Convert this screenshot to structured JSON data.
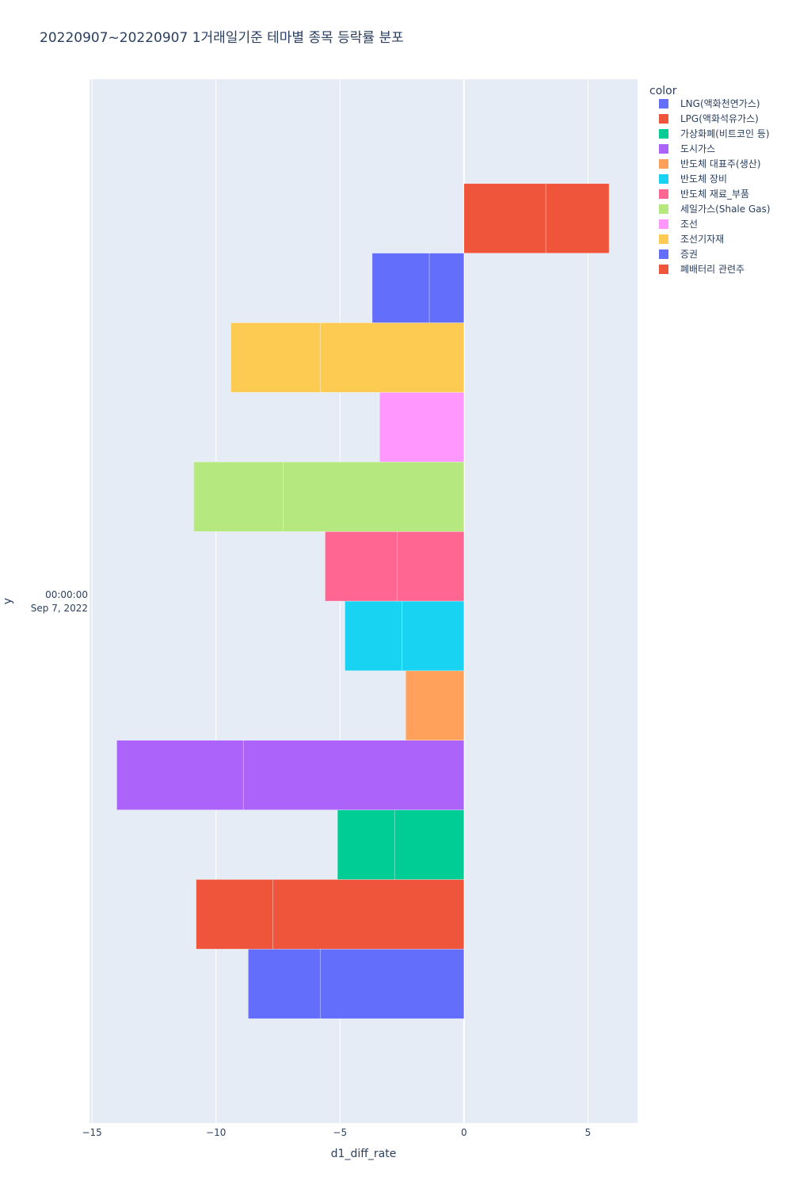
{
  "chart_data": {
    "type": "bar",
    "orientation": "horizontal",
    "barmode": "stacked-by-stock",
    "title": "20220907~20220907 1거래일기준 테마별 종목 등락률 분포",
    "xlabel": "d1_diff_rate",
    "ylabel": "y",
    "xlim": [
      -15.1,
      7.0
    ],
    "x_ticks": [
      -15,
      -10,
      -5,
      0,
      5
    ],
    "x_tick_labels": [
      "−15",
      "−10",
      "−5",
      "0",
      "5"
    ],
    "y_tick_label": [
      "00:00:00",
      "Sep 7, 2022"
    ],
    "legend_title": "color",
    "legend_position": "top-right",
    "grid": true,
    "background": "#e5ecf6",
    "series": [
      {
        "name": "LNG(액화천연가스)",
        "color": "#636efa",
        "segments": [
          -5.8,
          -2.9
        ]
      },
      {
        "name": "LPG(액화석유가스)",
        "color": "#ef553b",
        "segments": [
          -7.7,
          -3.1
        ]
      },
      {
        "name": "가상화폐(비트코인 등)",
        "color": "#00cc96",
        "segments": [
          -2.8,
          -2.3
        ]
      },
      {
        "name": "도시가스",
        "color": "#ab63fa",
        "segments": [
          -8.9,
          -5.1
        ]
      },
      {
        "name": "반도체 대표주(생산)",
        "color": "#ffa15a",
        "segments": [
          -2.35
        ]
      },
      {
        "name": "반도체 장비",
        "color": "#19d3f3",
        "segments": [
          -2.5,
          -2.3
        ]
      },
      {
        "name": "반도체 재료_부품",
        "color": "#ff6692",
        "segments": [
          -2.7,
          -2.9
        ]
      },
      {
        "name": "세일가스(Shale Gas)",
        "color": "#b6e880",
        "segments": [
          -7.3,
          -3.6
        ]
      },
      {
        "name": "조선",
        "color": "#ff97ff",
        "segments": [
          -3.4
        ]
      },
      {
        "name": "조선기자재",
        "color": "#fecb52",
        "segments": [
          -5.8,
          -3.6
        ]
      },
      {
        "name": "증권",
        "color": "#636efa",
        "segments": [
          -1.4,
          -2.3
        ]
      },
      {
        "name": "폐배터리 관련주",
        "color": "#ef553b",
        "segments": [
          3.3,
          2.55
        ]
      }
    ]
  }
}
